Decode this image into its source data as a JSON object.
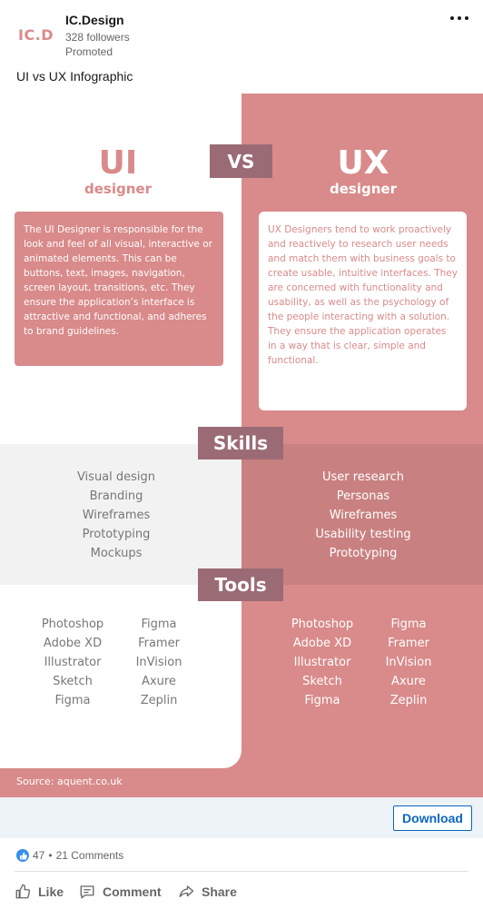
{
  "post": {
    "logo_text": "IC.D",
    "company": "IC.Design",
    "followers": "328 followers",
    "promoted": "Promoted",
    "caption": "UI vs UX Infographic"
  },
  "infographic": {
    "ui_title": "UI",
    "ui_subtitle": "designer",
    "vs": "VS",
    "ux_title": "UX",
    "ux_subtitle": "designer",
    "ui_description": "The UI Designer is responsible for the look and feel of all visual, interactive or animated elements. This can be buttons, text, images, navigation, screen layout, transitions, etc. They ensure the application’s interface is attractive and functional, and adheres to brand guidelines.",
    "ux_description": "UX Designers tend to work proactively and reactively to research user needs and match them with business goals to create usable, intuitive interfaces. They are concerned with functionality and usability, as well as the psychology of the people interacting with a solution. They ensure the application operates in a way that is clear, simple and functional.",
    "skills_heading": "Skills",
    "ui_skills": [
      "Visual design",
      "Branding",
      "Wireframes",
      "Prototyping",
      "Mockups"
    ],
    "ux_skills": [
      "User research",
      "Personas",
      "Wireframes",
      "Usability testing",
      "Prototyping"
    ],
    "tools_heading": "Tools",
    "ui_tools_col1": [
      "Photoshop",
      "Adobe XD",
      "Illustrator",
      "Sketch",
      "Figma"
    ],
    "ui_tools_col2": [
      "Figma",
      "Framer",
      "InVision",
      "Axure",
      "Zeplin"
    ],
    "ux_tools_col1": [
      "Photoshop",
      "Adobe XD",
      "Illustrator",
      "Sketch",
      "Figma"
    ],
    "ux_tools_col2": [
      "Figma",
      "Framer",
      "InVision",
      "Axure",
      "Zeplin"
    ],
    "source": "Source: aquent.co.uk"
  },
  "cta": {
    "download_label": "Download"
  },
  "social": {
    "reactions": "47",
    "separator": "•",
    "comments": "21 Comments"
  },
  "actions": {
    "like": "Like",
    "comment": "Comment",
    "share": "Share"
  },
  "colors": {
    "brand_pink": "#d98a8a",
    "mauve": "#9b6b75",
    "link_blue": "#0a66c2"
  },
  "icons": [
    "more-icon",
    "like-reaction-icon",
    "like-icon",
    "comment-icon",
    "share-icon"
  ]
}
